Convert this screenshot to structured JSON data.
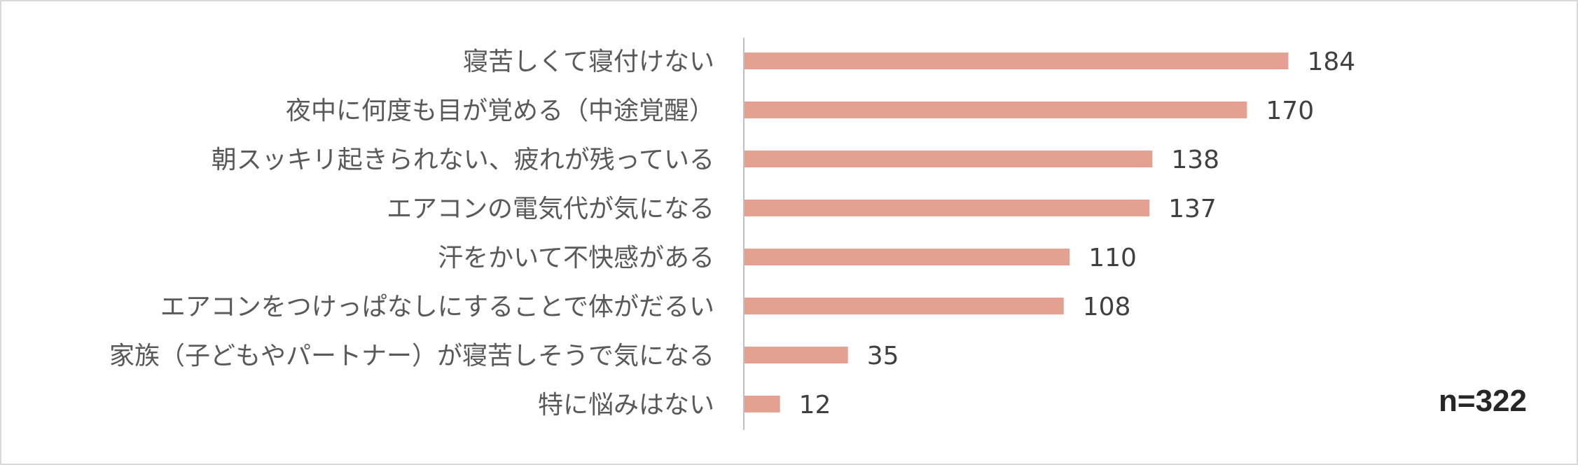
{
  "chart_data": {
    "type": "bar",
    "orientation": "horizontal",
    "categories": [
      "寝苦しくて寝付けない",
      "夜中に何度も目が覚める（中途覚醒）",
      "朝スッキリ起きられない、疲れが残っている",
      "エアコンの電気代が気になる",
      "汗をかいて不快感がある",
      "エアコンをつけっぱなしにすることで体がだるい",
      "家族（子どもやパートナー）が寝苦しそうで気になる",
      "特に悩みはない"
    ],
    "values": [
      184,
      170,
      138,
      137,
      110,
      108,
      35,
      12
    ],
    "xlim": [
      0,
      200
    ],
    "grid": false,
    "bar_color": "#e4a191",
    "annotation": "n=322"
  }
}
